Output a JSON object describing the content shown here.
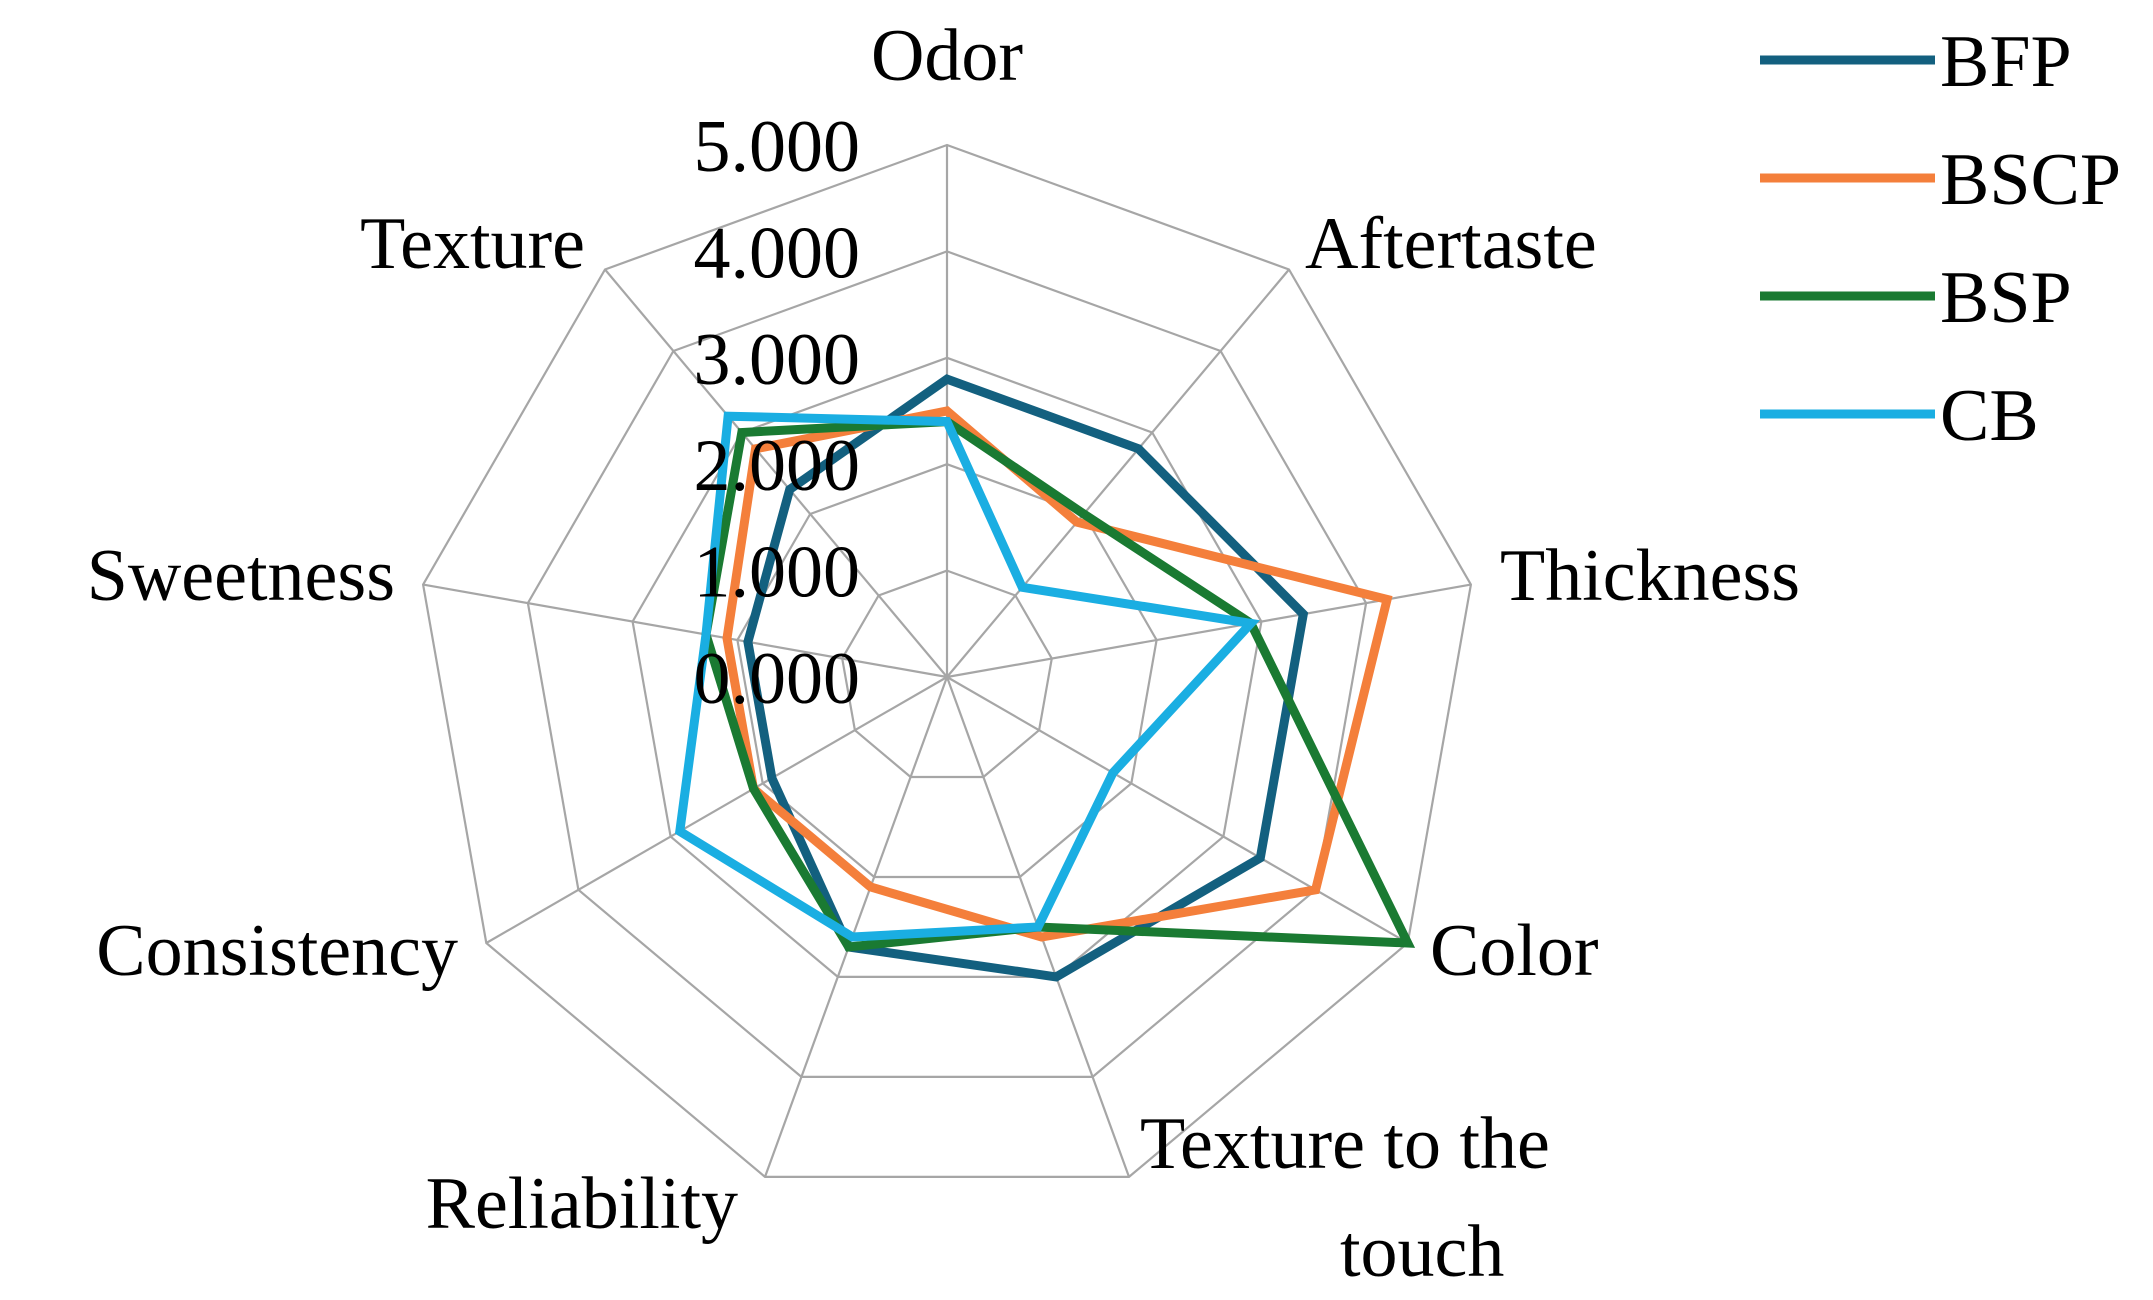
{
  "chart_data": {
    "type": "radar",
    "axes": [
      "Odor",
      "Aftertaste",
      "Thickness",
      "Color",
      "Texture to the touch",
      "Reliability",
      "Consistency",
      "Sweetness",
      "Texture"
    ],
    "range": [
      0,
      5
    ],
    "ticks": [
      "0.000",
      "1.000",
      "2.000",
      "3.000",
      "4.000",
      "5.000"
    ],
    "grid": true,
    "legend_position": "top-right",
    "series": [
      {
        "name": "BFP",
        "color": "#13607f",
        "values": [
          2.8,
          2.8,
          3.4,
          3.4,
          3.0,
          2.7,
          1.9,
          1.9,
          2.3
        ]
      },
      {
        "name": "BSCP",
        "color": "#f47f3b",
        "values": [
          2.5,
          1.9,
          4.2,
          4.0,
          2.6,
          2.1,
          2.1,
          2.1,
          2.8
        ]
      },
      {
        "name": "BSP",
        "color": "#1a7a32",
        "values": [
          2.4,
          2.0,
          2.9,
          5.0,
          2.5,
          2.7,
          2.1,
          2.3,
          3.0
        ]
      },
      {
        "name": "CB",
        "color": "#1aaee2",
        "values": [
          2.4,
          1.1,
          2.9,
          1.8,
          2.5,
          2.6,
          2.9,
          2.3,
          3.2
        ]
      }
    ]
  }
}
